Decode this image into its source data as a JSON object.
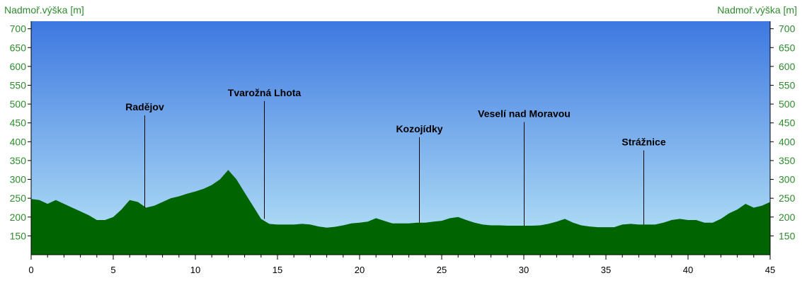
{
  "chart_data": {
    "type": "area",
    "ylabel_left": "Nadmoř.výška [m]",
    "ylabel_right": "Nadmoř.výška [m]",
    "xlim": [
      0,
      45
    ],
    "ylim": [
      100,
      720
    ],
    "x_ticks": [
      0,
      5,
      10,
      15,
      20,
      25,
      30,
      35,
      40,
      45
    ],
    "y_ticks": [
      150,
      200,
      250,
      300,
      350,
      400,
      450,
      500,
      550,
      600,
      650,
      700
    ],
    "x": [
      0,
      0.5,
      1.0,
      1.5,
      2.0,
      2.5,
      3.0,
      3.5,
      4.0,
      4.5,
      5.0,
      5.5,
      6.0,
      6.5,
      7.0,
      7.5,
      8.0,
      8.5,
      9.0,
      9.5,
      10.0,
      10.5,
      11.0,
      11.5,
      12.0,
      12.5,
      13.0,
      13.5,
      14.0,
      14.5,
      15.0,
      15.5,
      16.0,
      16.5,
      17.0,
      17.5,
      18.0,
      18.5,
      19.0,
      19.5,
      20.0,
      20.5,
      21.0,
      21.5,
      22.0,
      22.5,
      23.0,
      23.5,
      24.0,
      24.5,
      25.0,
      25.5,
      26.0,
      26.5,
      27.0,
      27.5,
      28.0,
      28.5,
      29.0,
      29.5,
      30.0,
      30.5,
      31.0,
      31.5,
      32.0,
      32.5,
      33.0,
      33.5,
      34.0,
      34.5,
      35.0,
      35.5,
      36.0,
      36.5,
      37.0,
      37.5,
      38.0,
      38.5,
      39.0,
      39.5,
      40.0,
      40.5,
      41.0,
      41.5,
      42.0,
      42.5,
      43.0,
      43.5,
      44.0,
      44.5,
      45.0
    ],
    "y": [
      248,
      245,
      235,
      245,
      235,
      225,
      215,
      205,
      192,
      192,
      200,
      220,
      245,
      240,
      225,
      230,
      240,
      250,
      255,
      262,
      268,
      275,
      285,
      300,
      325,
      300,
      265,
      230,
      195,
      182,
      180,
      180,
      180,
      182,
      180,
      175,
      172,
      174,
      178,
      183,
      185,
      188,
      197,
      190,
      183,
      183,
      183,
      185,
      185,
      188,
      190,
      197,
      200,
      192,
      185,
      180,
      178,
      178,
      177,
      177,
      177,
      177,
      178,
      182,
      188,
      195,
      185,
      178,
      175,
      173,
      173,
      173,
      180,
      182,
      180,
      180,
      180,
      185,
      192,
      195,
      192,
      192,
      185,
      185,
      195,
      210,
      220,
      235,
      225,
      230,
      240
    ],
    "series": [
      {
        "name": "",
        "color": "#006400"
      }
    ],
    "annotations": [
      {
        "label": "Radějov",
        "x": 6.9,
        "top": 470,
        "bottom": 225
      },
      {
        "label": "Tvarožná Lhota",
        "x": 14.2,
        "top": 508,
        "bottom": 195
      },
      {
        "label": "Kozojídky",
        "x": 23.6,
        "top": 412,
        "bottom": 185
      },
      {
        "label": "Veselí nad Moravou",
        "x": 30.0,
        "top": 452,
        "bottom": 177
      },
      {
        "label": "Strážnice",
        "x": 37.3,
        "top": 377,
        "bottom": 180
      }
    ],
    "colors": {
      "sky_top": "#3d78e0",
      "sky_bottom": "#b9e6f8",
      "terrain": "#006400",
      "axis_text": "#2e8b2e",
      "x_axis_text": "#000000"
    },
    "grid": false
  }
}
